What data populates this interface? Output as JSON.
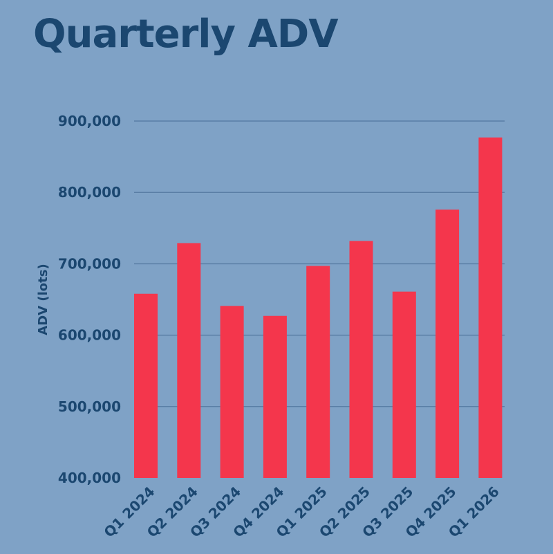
{
  "chart_data": {
    "type": "bar",
    "title": "Quarterly ADV",
    "xlabel": "",
    "ylabel": "ADV (lots)",
    "ylim": [
      400000,
      900000
    ],
    "yticks": [
      400000,
      500000,
      600000,
      700000,
      800000,
      900000
    ],
    "ytick_labels": [
      "400,000",
      "500,000",
      "600,000",
      "700,000",
      "800,000",
      "900,000"
    ],
    "categories": [
      "Q1 2024",
      "Q2 2024",
      "Q3 2024",
      "Q4 2024",
      "Q1 2025",
      "Q2 2025",
      "Q3 2025",
      "Q4 2025",
      "Q1 2026"
    ],
    "values": [
      658000,
      729000,
      641000,
      627000,
      697000,
      732000,
      661000,
      776000,
      877000
    ],
    "grid": true,
    "legend": "none"
  },
  "colors": {
    "background": "#7fa2c6",
    "bar": "#f4364c",
    "text": "#1b4770",
    "grid": "#5a7ea5"
  }
}
